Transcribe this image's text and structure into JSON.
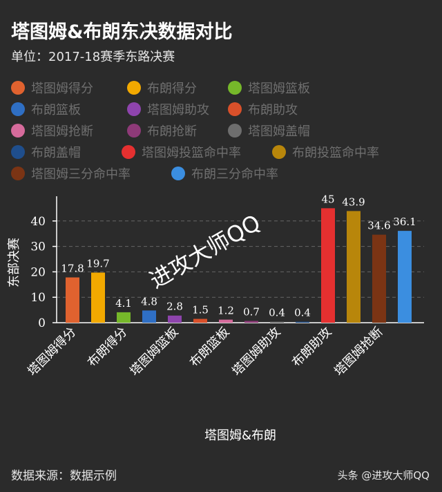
{
  "header": {
    "title": "塔图姆&布朗东决数据对比",
    "subtitle": "单位：2017-18赛季东路决赛"
  },
  "legend": [
    {
      "label": "塔图姆得分",
      "color": "#e0622f"
    },
    {
      "label": "布朗得分",
      "color": "#f2a900"
    },
    {
      "label": "塔图姆篮板",
      "color": "#76b82a"
    },
    {
      "label": "布朗篮板",
      "color": "#2f6fc4"
    },
    {
      "label": "塔图姆助攻",
      "color": "#8e44ad"
    },
    {
      "label": "布朗助攻",
      "color": "#d9502a"
    },
    {
      "label": "塔图姆抢断",
      "color": "#d66b9c"
    },
    {
      "label": "布朗抢断",
      "color": "#8e3a78"
    },
    {
      "label": "塔图姆盖帽",
      "color": "#6e6e6e"
    },
    {
      "label": "布朗盖帽",
      "color": "#1f4e8c"
    },
    {
      "label": "塔图姆投篮命中率",
      "color": "#e53030"
    },
    {
      "label": "布朗投篮命中率",
      "color": "#b8860b"
    },
    {
      "label": "塔图姆三分命中率",
      "color": "#7b3414"
    },
    {
      "label": "布朗三分命中率",
      "color": "#3b8ee0"
    }
  ],
  "chart_data": {
    "type": "bar",
    "title": "塔图姆&布朗东决数据对比",
    "subtitle": "单位：2017-18赛季东路决赛",
    "xlabel": "塔图姆&布朗",
    "ylabel": "东部决赛",
    "ylim": [
      0,
      47
    ],
    "yticks": [
      0,
      10,
      20,
      30,
      40
    ],
    "grid": true,
    "categories": [
      "塔图姆得分",
      "布朗得分",
      "塔图姆篮板",
      "布朗篮板",
      "塔图姆助攻",
      "布朗助攻",
      "塔图姆抢断",
      "布朗抢断",
      "塔图姆盖帽",
      "布朗盖帽",
      "塔图姆投篮命中率",
      "布朗投篮命中率",
      "塔图姆三分命中率",
      "布朗三分命中率"
    ],
    "values": [
      17.8,
      19.7,
      4.1,
      4.8,
      2.8,
      1.5,
      1.2,
      0.7,
      0.4,
      0.4,
      45,
      43.9,
      34.6,
      36.1
    ],
    "value_labels": [
      "17.8",
      "19.7",
      "4.1",
      "4.8",
      "2.8",
      "1.5",
      "1.2",
      "0.7",
      "0.4",
      "0.4",
      "45",
      "43.9",
      "34.6",
      "36.1"
    ],
    "shown_tick_labels": [
      "塔图姆得分",
      "布朗得分",
      "塔图姆篮板",
      "布朗篮板",
      "塔图姆助攻",
      "布朗助攻",
      "塔图姆抢断"
    ]
  },
  "watermark": "进攻大师QQ",
  "footer": {
    "source": "数据来源：数据示例",
    "credit": "头条 @进攻大师QQ"
  }
}
